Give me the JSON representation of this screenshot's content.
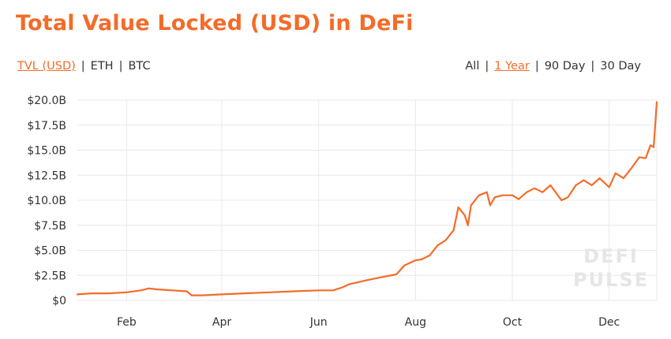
{
  "title": "Total Value Locked (USD) in DeFi",
  "metric_options": [
    {
      "label": "TVL (USD)",
      "active": true
    },
    {
      "label": "ETH",
      "active": false
    },
    {
      "label": "BTC",
      "active": false
    }
  ],
  "range_options": [
    {
      "label": "All",
      "active": false
    },
    {
      "label": "1 Year",
      "active": true
    },
    {
      "label": "90 Day",
      "active": false
    },
    {
      "label": "30 Day",
      "active": false
    }
  ],
  "watermark": [
    "DEFI",
    "PULSE"
  ],
  "colors": {
    "accent": "#f26c2a",
    "grid": "#e8e8e8",
    "text": "#333333"
  },
  "chart_data": {
    "type": "line",
    "title": "Total Value Locked (USD) in DeFi",
    "xlabel": "",
    "ylabel": "",
    "ylim": [
      0,
      20
    ],
    "y_ticks": [
      0,
      2.5,
      5,
      7.5,
      10,
      12.5,
      15,
      17.5,
      20
    ],
    "y_tick_labels": [
      "$0",
      "$2.5B",
      "$5.0B",
      "$7.5B",
      "$10.0B",
      "$12.5B",
      "$15.0B",
      "$17.5B",
      "$20.0B"
    ],
    "x_ticks": [
      "2020-02-01",
      "2020-04-01",
      "2020-06-01",
      "2020-08-01",
      "2020-10-01",
      "2020-12-01"
    ],
    "x_tick_labels": [
      "Feb",
      "Apr",
      "Jun",
      "Aug",
      "Oct",
      "Dec"
    ],
    "xlim": [
      "2020-01-01",
      "2020-12-31"
    ],
    "grid": true,
    "series": [
      {
        "color": "#f26c2a",
        "x": [
          "2020-01-01",
          "2020-01-10",
          "2020-01-20",
          "2020-02-01",
          "2020-02-10",
          "2020-02-15",
          "2020-02-20",
          "2020-03-01",
          "2020-03-10",
          "2020-03-13",
          "2020-03-20",
          "2020-04-01",
          "2020-04-15",
          "2020-05-01",
          "2020-05-15",
          "2020-06-01",
          "2020-06-10",
          "2020-06-16",
          "2020-06-20",
          "2020-07-01",
          "2020-07-10",
          "2020-07-20",
          "2020-07-25",
          "2020-08-01",
          "2020-08-05",
          "2020-08-10",
          "2020-08-15",
          "2020-08-20",
          "2020-08-25",
          "2020-08-28",
          "2020-09-01",
          "2020-09-03",
          "2020-09-05",
          "2020-09-10",
          "2020-09-15",
          "2020-09-17",
          "2020-09-20",
          "2020-09-25",
          "2020-10-01",
          "2020-10-05",
          "2020-10-10",
          "2020-10-15",
          "2020-10-20",
          "2020-10-25",
          "2020-11-01",
          "2020-11-05",
          "2020-11-10",
          "2020-11-15",
          "2020-11-20",
          "2020-11-25",
          "2020-12-01",
          "2020-12-05",
          "2020-12-10",
          "2020-12-15",
          "2020-12-20",
          "2020-12-24",
          "2020-12-27",
          "2020-12-29",
          "2020-12-30",
          "2020-12-31"
        ],
        "y": [
          0.6,
          0.7,
          0.7,
          0.8,
          1.0,
          1.2,
          1.1,
          1.0,
          0.9,
          0.5,
          0.5,
          0.6,
          0.7,
          0.8,
          0.9,
          1.0,
          1.0,
          1.3,
          1.6,
          2.0,
          2.3,
          2.6,
          3.5,
          4.0,
          4.1,
          4.5,
          5.5,
          6.0,
          7.0,
          9.3,
          8.5,
          7.5,
          9.5,
          10.5,
          10.8,
          9.5,
          10.3,
          10.5,
          10.5,
          10.1,
          10.8,
          11.2,
          10.8,
          11.5,
          10.0,
          10.3,
          11.5,
          12.0,
          11.5,
          12.2,
          11.3,
          12.7,
          12.2,
          13.2,
          14.3,
          14.2,
          15.5,
          15.3,
          17.5,
          19.8
        ]
      }
    ]
  }
}
